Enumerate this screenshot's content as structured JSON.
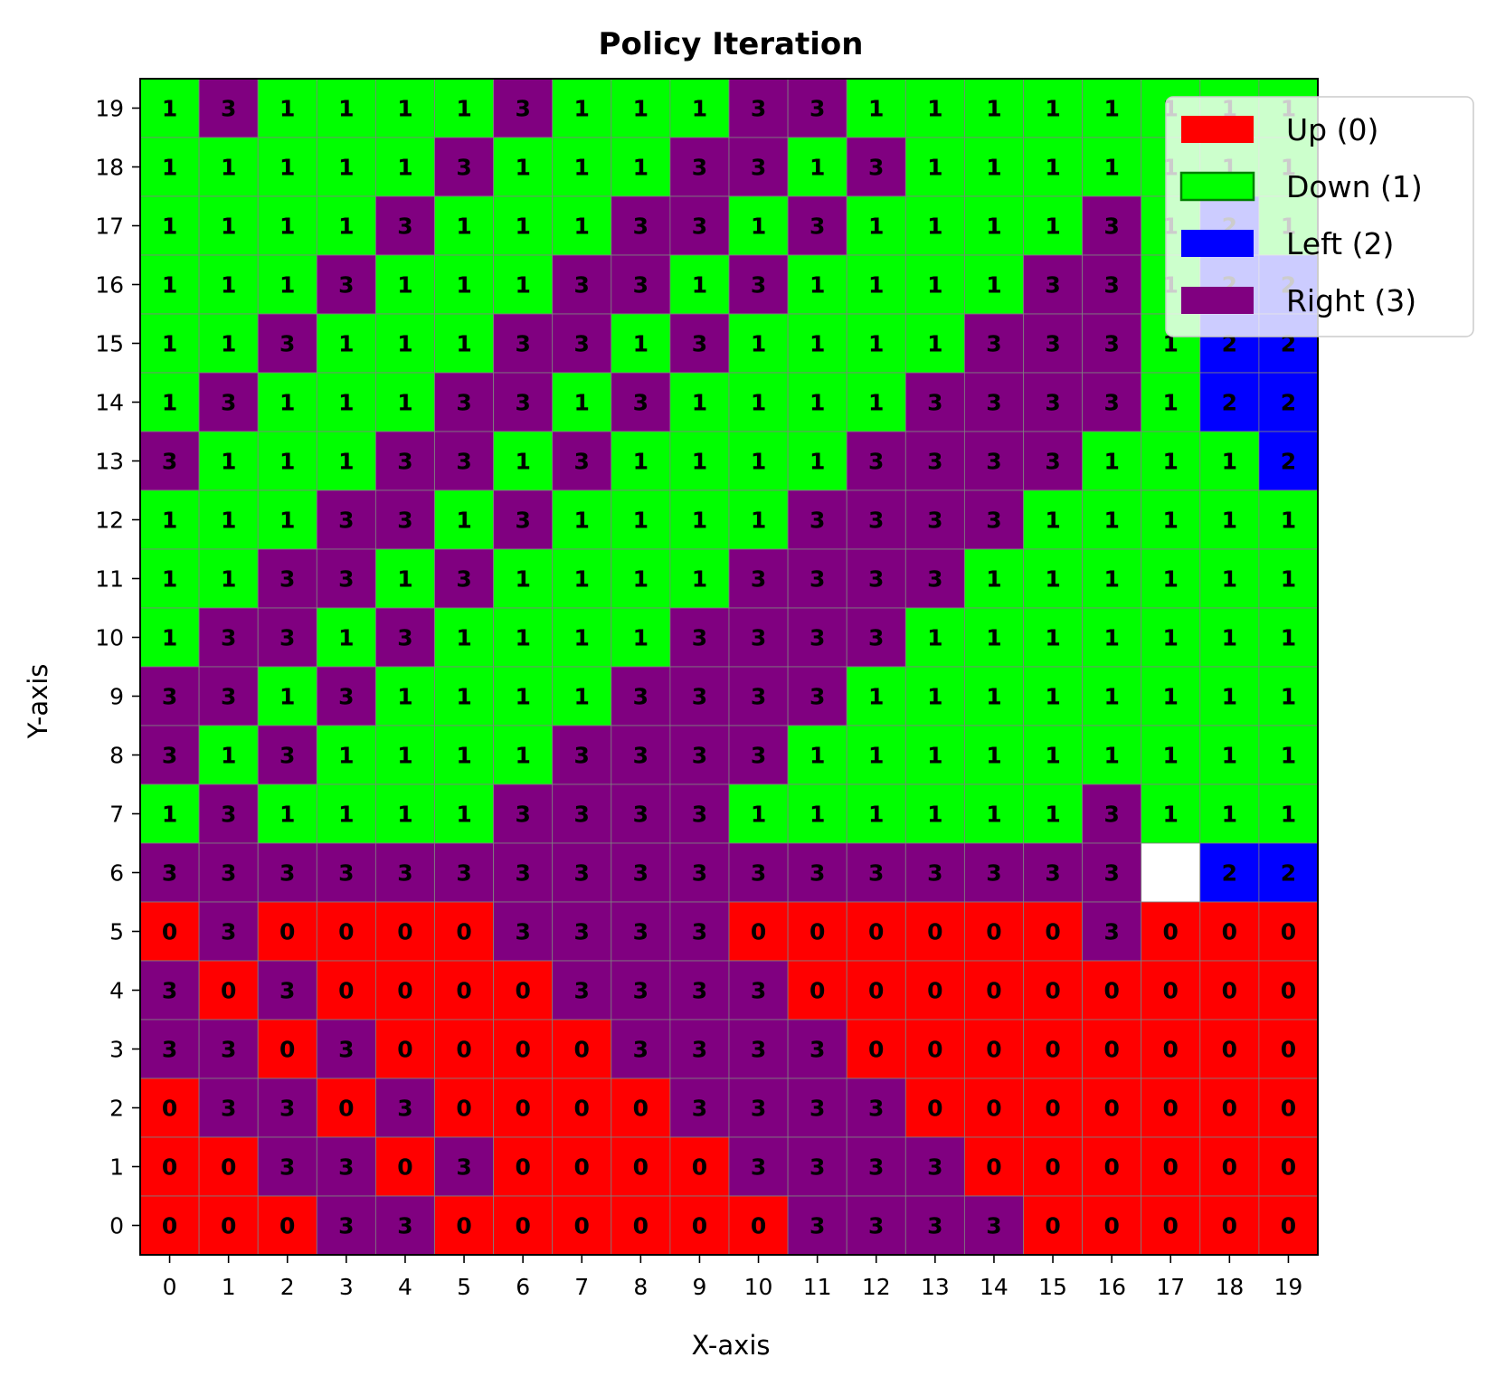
{
  "chart_data": {
    "type": "heatmap",
    "title": "Policy Iteration",
    "xlabel": "X-axis",
    "ylabel": "Y-axis",
    "x_ticks": [
      "0",
      "1",
      "2",
      "3",
      "4",
      "5",
      "6",
      "7",
      "8",
      "9",
      "10",
      "11",
      "12",
      "13",
      "14",
      "15",
      "16",
      "17",
      "18",
      "19"
    ],
    "y_ticks": [
      "0",
      "1",
      "2",
      "3",
      "4",
      "5",
      "6",
      "7",
      "8",
      "9",
      "10",
      "11",
      "12",
      "13",
      "14",
      "15",
      "16",
      "17",
      "18",
      "19"
    ],
    "xlim": [
      -0.5,
      19.5
    ],
    "ylim": [
      -0.5,
      19.5
    ],
    "grid": [
      [
        1,
        3,
        1,
        1,
        1,
        1,
        3,
        1,
        1,
        1,
        3,
        3,
        1,
        1,
        1,
        1,
        1,
        1,
        1,
        1
      ],
      [
        1,
        1,
        1,
        1,
        1,
        3,
        1,
        1,
        1,
        3,
        3,
        1,
        3,
        1,
        1,
        1,
        1,
        1,
        1,
        1
      ],
      [
        1,
        1,
        1,
        1,
        3,
        1,
        1,
        1,
        3,
        3,
        1,
        3,
        1,
        1,
        1,
        1,
        3,
        1,
        2,
        1
      ],
      [
        1,
        1,
        1,
        3,
        1,
        1,
        1,
        3,
        3,
        1,
        3,
        1,
        1,
        1,
        1,
        3,
        3,
        1,
        2,
        2
      ],
      [
        1,
        1,
        3,
        1,
        1,
        1,
        3,
        3,
        1,
        3,
        1,
        1,
        1,
        1,
        3,
        3,
        3,
        1,
        2,
        2
      ],
      [
        1,
        3,
        1,
        1,
        1,
        3,
        3,
        1,
        3,
        1,
        1,
        1,
        1,
        3,
        3,
        3,
        3,
        1,
        2,
        2
      ],
      [
        3,
        1,
        1,
        1,
        3,
        3,
        1,
        3,
        1,
        1,
        1,
        1,
        3,
        3,
        3,
        3,
        1,
        1,
        1,
        2
      ],
      [
        1,
        1,
        1,
        3,
        3,
        1,
        3,
        1,
        1,
        1,
        1,
        3,
        3,
        3,
        3,
        1,
        1,
        1,
        1,
        1
      ],
      [
        1,
        1,
        3,
        3,
        1,
        3,
        1,
        1,
        1,
        1,
        3,
        3,
        3,
        3,
        1,
        1,
        1,
        1,
        1,
        1
      ],
      [
        1,
        3,
        3,
        1,
        3,
        1,
        1,
        1,
        1,
        3,
        3,
        3,
        3,
        1,
        1,
        1,
        1,
        1,
        1,
        1
      ],
      [
        3,
        3,
        1,
        3,
        1,
        1,
        1,
        1,
        3,
        3,
        3,
        3,
        1,
        1,
        1,
        1,
        1,
        1,
        1,
        1
      ],
      [
        3,
        1,
        3,
        1,
        1,
        1,
        1,
        3,
        3,
        3,
        3,
        1,
        1,
        1,
        1,
        1,
        1,
        1,
        1,
        1
      ],
      [
        1,
        3,
        1,
        1,
        1,
        1,
        3,
        3,
        3,
        3,
        1,
        1,
        1,
        1,
        1,
        1,
        3,
        1,
        1,
        1
      ],
      [
        3,
        3,
        3,
        3,
        3,
        3,
        3,
        3,
        3,
        3,
        3,
        3,
        3,
        3,
        3,
        3,
        3,
        null,
        2,
        2
      ],
      [
        0,
        3,
        0,
        0,
        0,
        0,
        3,
        3,
        3,
        3,
        0,
        0,
        0,
        0,
        0,
        0,
        3,
        0,
        0,
        0
      ],
      [
        3,
        0,
        3,
        0,
        0,
        0,
        0,
        3,
        3,
        3,
        3,
        0,
        0,
        0,
        0,
        0,
        0,
        0,
        0,
        0
      ],
      [
        3,
        3,
        0,
        3,
        0,
        0,
        0,
        0,
        3,
        3,
        3,
        3,
        0,
        0,
        0,
        0,
        0,
        0,
        0,
        0
      ],
      [
        0,
        3,
        3,
        0,
        3,
        0,
        0,
        0,
        0,
        3,
        3,
        3,
        3,
        0,
        0,
        0,
        0,
        0,
        0,
        0
      ],
      [
        0,
        0,
        3,
        3,
        0,
        3,
        0,
        0,
        0,
        0,
        3,
        3,
        3,
        3,
        0,
        0,
        0,
        0,
        0,
        0
      ],
      [
        0,
        0,
        0,
        3,
        3,
        0,
        0,
        0,
        0,
        0,
        0,
        3,
        3,
        3,
        3,
        0,
        0,
        0,
        0,
        0
      ]
    ],
    "legend_position": "top-right",
    "actions": [
      {
        "code": 0,
        "label": "Up (0)",
        "color": "#ff0000"
      },
      {
        "code": 1,
        "label": "Down (1)",
        "color": "#00ff00"
      },
      {
        "code": 2,
        "label": "Left (2)",
        "color": "#0000ff"
      },
      {
        "code": 3,
        "label": "Right (3)",
        "color": "#800080"
      }
    ],
    "empty_cell_color": "#ffffff",
    "note_rows": "grid[r] is the row at y = 19 - r, listed left to right for x = 0..19; null marks the blank cell"
  }
}
